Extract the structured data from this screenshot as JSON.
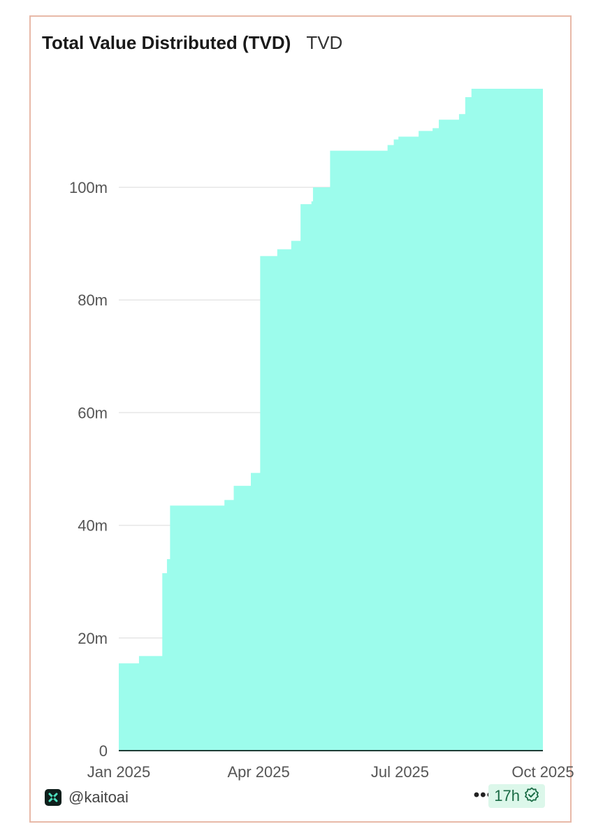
{
  "header": {
    "title": "Total Value Distributed (TVD)",
    "subtitle": "TVD"
  },
  "footer": {
    "handle": "@kaitoai",
    "more": "•••",
    "age_badge": "17h",
    "brand_icon": "kaito-logo-icon",
    "verified_icon": "verified-check-icon"
  },
  "colors": {
    "area_fill": "#9cfcec",
    "axis_line": "#1f3d36",
    "grid": "#e6e6e6"
  },
  "chart_data": {
    "type": "area",
    "title": "Total Value Distributed (TVD)",
    "subtitle": "TVD",
    "xlabel": "",
    "ylabel": "",
    "x_ticks": [
      "Jan 2025",
      "Apr 2025",
      "Jul 2025",
      "Oct 2025"
    ],
    "y_ticks": [
      "0",
      "20m",
      "40m",
      "60m",
      "80m",
      "100m"
    ],
    "y_tick_values": [
      0,
      20,
      40,
      60,
      80,
      100
    ],
    "ylim": [
      0,
      120
    ],
    "grid": true,
    "step": true,
    "series": [
      {
        "points": [
          [
            "2025-01-01",
            15.5
          ],
          [
            "2025-01-14",
            16.8
          ],
          [
            "2025-01-29",
            31.5
          ],
          [
            "2025-02-01",
            34.0
          ],
          [
            "2025-02-03",
            43.5
          ],
          [
            "2025-03-10",
            44.5
          ],
          [
            "2025-03-16",
            47.0
          ],
          [
            "2025-03-27",
            49.3
          ],
          [
            "2025-04-02",
            87.8
          ],
          [
            "2025-04-13",
            89.0
          ],
          [
            "2025-04-22",
            90.5
          ],
          [
            "2025-04-28",
            97.0
          ],
          [
            "2025-05-05",
            97.5
          ],
          [
            "2025-05-06",
            100.0
          ],
          [
            "2025-05-17",
            106.5
          ],
          [
            "2025-06-23",
            107.5
          ],
          [
            "2025-06-27",
            108.5
          ],
          [
            "2025-06-30",
            109.0
          ],
          [
            "2025-07-13",
            110.0
          ],
          [
            "2025-07-22",
            110.5
          ],
          [
            "2025-07-26",
            112.0
          ],
          [
            "2025-08-08",
            113.0
          ],
          [
            "2025-08-12",
            116.0
          ],
          [
            "2025-08-16",
            117.5
          ],
          [
            "2025-08-27",
            117.5
          ]
        ]
      }
    ]
  }
}
